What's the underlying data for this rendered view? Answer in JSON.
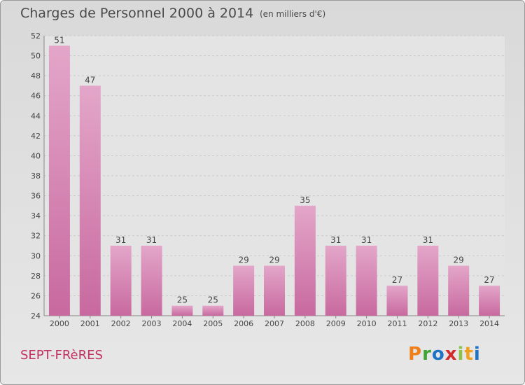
{
  "title": "Charges de Personnel 2000 à 2014",
  "subtitle": "(en milliers d'€)",
  "commune": "SEPT-FRèRES",
  "logo": {
    "letters": [
      "P",
      "r",
      "o",
      "x",
      "i",
      "t",
      "i"
    ],
    "colors": [
      "#f07f1a",
      "#3fa535",
      "#1f73c4",
      "#d22b2b",
      "#8bc34a",
      "#f0a020",
      "#1f73c4"
    ]
  },
  "colors": {
    "bar": "#c8699f",
    "bar_light": "#e3a6c9",
    "background": "#e0e0e0"
  },
  "chart_data": {
    "type": "bar",
    "title": "Charges de Personnel 2000 à 2014",
    "subtitle": "(en milliers d'€)",
    "categories": [
      "2000",
      "2001",
      "2002",
      "2003",
      "2004",
      "2005",
      "2006",
      "2007",
      "2008",
      "2009",
      "2010",
      "2011",
      "2012",
      "2013",
      "2014"
    ],
    "values": [
      51,
      47,
      31,
      31,
      25,
      25,
      29,
      29,
      35,
      31,
      31,
      27,
      31,
      29,
      27
    ],
    "ylim": [
      24,
      52
    ],
    "yticks": [
      24,
      26,
      28,
      30,
      32,
      34,
      36,
      38,
      40,
      42,
      44,
      46,
      48,
      50,
      52
    ],
    "grid": true,
    "xlabel": "",
    "ylabel": ""
  }
}
